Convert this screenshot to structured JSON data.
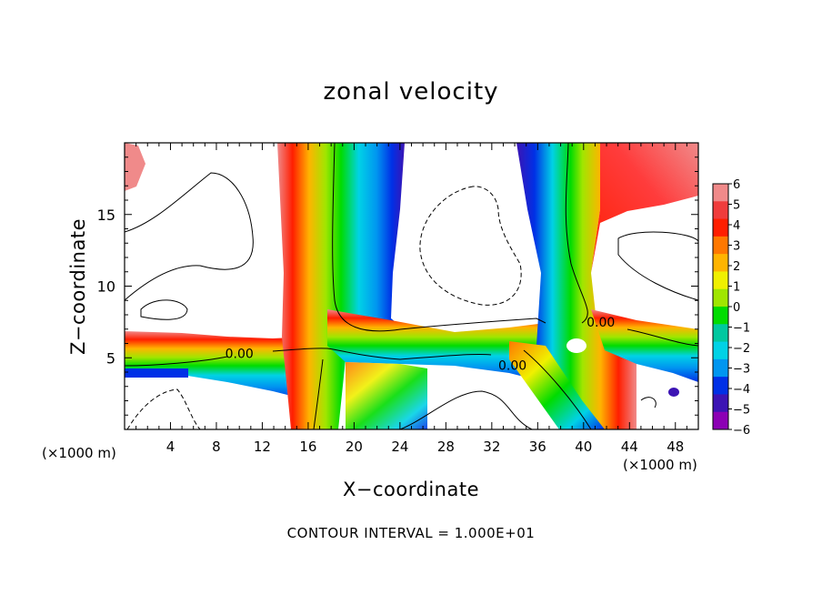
{
  "chart_data": {
    "type": "heatmap",
    "title": "zonal velocity",
    "xlabel": "X−coordinate",
    "ylabel": "Z−coordinate",
    "x_unit_label": "(×1000 m)",
    "xlim": [
      0,
      50
    ],
    "ylim": [
      0,
      20
    ],
    "x_ticks": [
      4,
      8,
      12,
      16,
      20,
      24,
      28,
      32,
      36,
      40,
      44,
      48
    ],
    "y_ticks": [
      5,
      10,
      15
    ],
    "footer": "CONTOUR INTERVAL = 1.000E+01",
    "colorbar": {
      "ticks": [
        6,
        5,
        4,
        3,
        2,
        1,
        0,
        -1,
        -2,
        -3,
        -4,
        -5,
        -6
      ],
      "tick_labels": [
        "6",
        "5",
        "4",
        "3",
        "2",
        "1",
        "0",
        "−1",
        "−2",
        "−3",
        "−4",
        "−5",
        "−6"
      ],
      "colors": [
        "#f08a8a",
        "#f03c3c",
        "#ff1e00",
        "#ff7800",
        "#ffb400",
        "#f0f000",
        "#a0e600",
        "#00dc00",
        "#00c8a0",
        "#00d2e6",
        "#0096f0",
        "#0030e6",
        "#3c14b4",
        "#8c00b4"
      ]
    },
    "contour_labels": [
      {
        "text": "0.00",
        "x": 10,
        "y": 5.1
      },
      {
        "text": "0.00",
        "x": 33.8,
        "y": 4.3
      },
      {
        "text": "0.00",
        "x": 41.5,
        "y": 7.3
      }
    ]
  }
}
